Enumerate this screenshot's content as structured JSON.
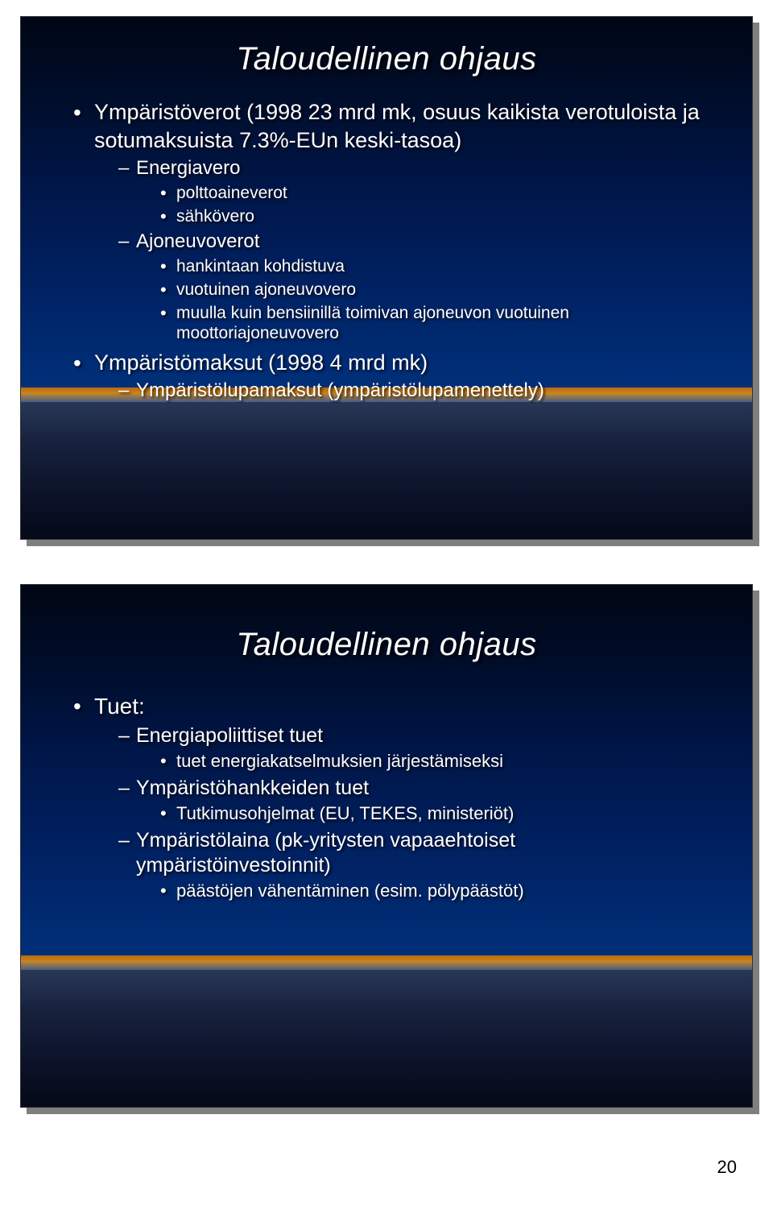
{
  "page_number": "20",
  "slide1": {
    "title": "Taloudellinen ohjaus",
    "b1_text": "Ympäristöverot (1998 23 mrd mk, osuus kaikista verotuloista ja sotumaksuista 7.3%-EUn keski-tasoa)",
    "b1_s1": "Energiavero",
    "b1_s1_a": "polttoaineverot",
    "b1_s1_b": "sähkövero",
    "b1_s2": "Ajoneuvoverot",
    "b1_s2_a": "hankintaan kohdistuva",
    "b1_s2_b": "vuotuinen ajoneuvovero",
    "b1_s2_c": "muulla kuin bensiinillä toimivan ajoneuvon vuotuinen moottoriajoneuvovero",
    "b2_text": "Ympäristömaksut (1998 4 mrd mk)",
    "b2_s1": "Ympäristölupamaksut (ympäristölupamenettely)"
  },
  "slide2": {
    "title": "Taloudellinen ohjaus",
    "b1_text": "Tuet:",
    "b1_s1": "Energiapoliittiset tuet",
    "b1_s1_a": "tuet energiakatselmuksien järjestämiseksi",
    "b1_s2": "Ympäristöhankkeiden tuet",
    "b1_s2_a": "Tutkimusohjelmat (EU, TEKES, ministeriöt)",
    "b1_s3": "Ympäristölaina (pk-yritysten vapaaehtoiset ympäristöinvestoinnit)",
    "b1_s3_a": "päästöjen vähentäminen (esim. pölypäästöt)"
  }
}
